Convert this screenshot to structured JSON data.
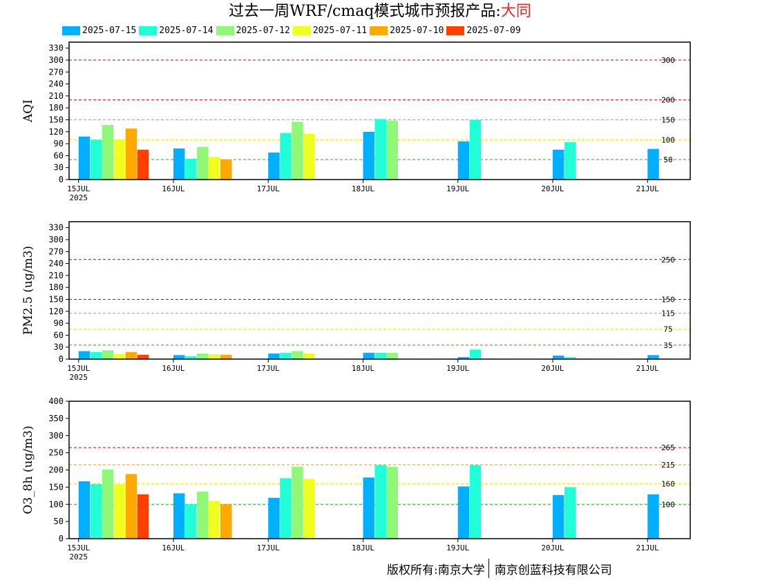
{
  "title": {
    "prefix": "过去一周WRF/cmaq模式城市预报产品:",
    "city": "大同"
  },
  "legend": [
    {
      "label": "2025-07-15",
      "color": "#00b0ff"
    },
    {
      "label": "2025-07-14",
      "color": "#20ffd8"
    },
    {
      "label": "2025-07-12",
      "color": "#90f878"
    },
    {
      "label": "2025-07-11",
      "color": "#f0ff20"
    },
    {
      "label": "2025-07-10",
      "color": "#ffa800"
    },
    {
      "label": "2025-07-09",
      "color": "#ff4000"
    }
  ],
  "footer": {
    "left": "版权所有:南京大学",
    "right": "南京创蓝科技有限公司"
  },
  "chart_data": [
    {
      "type": "bar",
      "ylabel": "AQI",
      "ylim": [
        0,
        345
      ],
      "yticks": [
        0,
        30,
        60,
        90,
        120,
        150,
        180,
        210,
        240,
        270,
        300,
        330
      ],
      "xlim": [
        -0.1,
        6.45
      ],
      "categories": [
        "15JUL",
        "16JUL",
        "17JUL",
        "18JUL",
        "19JUL",
        "20JUL",
        "21JUL"
      ],
      "year_label": "2025",
      "thresholds": [
        {
          "value": 50,
          "label": "50",
          "color": "#00c000"
        },
        {
          "value": 100,
          "label": "100",
          "color": "#e8e800"
        },
        {
          "value": 150,
          "label": "150",
          "color": "#ff9000"
        },
        {
          "value": 200,
          "label": "200",
          "color": "#e00000"
        },
        {
          "value": 300,
          "label": "300",
          "color": "#a00050"
        }
      ],
      "series": [
        {
          "name": "2025-07-15",
          "bars": [
            [
              0,
              108
            ],
            [
              1,
              78
            ],
            [
              2,
              68
            ],
            [
              3,
              120
            ],
            [
              4,
              96
            ],
            [
              5,
              75
            ],
            [
              6,
              77
            ]
          ]
        },
        {
          "name": "2025-07-14",
          "bars": [
            [
              0,
              100
            ],
            [
              1,
              52
            ],
            [
              2,
              117
            ],
            [
              3,
              152
            ],
            [
              4,
              150
            ],
            [
              5,
              94
            ]
          ]
        },
        {
          "name": "2025-07-12",
          "bars": [
            [
              0,
              137
            ],
            [
              1,
              82
            ],
            [
              2,
              145
            ],
            [
              3,
              148
            ]
          ]
        },
        {
          "name": "2025-07-11",
          "bars": [
            [
              0,
              100
            ],
            [
              1,
              57
            ],
            [
              2,
              115
            ]
          ]
        },
        {
          "name": "2025-07-10",
          "bars": [
            [
              0,
              128
            ],
            [
              1,
              51
            ]
          ]
        },
        {
          "name": "2025-07-09",
          "bars": [
            [
              0,
              75
            ]
          ]
        }
      ]
    },
    {
      "type": "bar",
      "ylabel": "PM2.5 (ug/m3)",
      "ylim": [
        0,
        345
      ],
      "yticks": [
        0,
        30,
        60,
        90,
        120,
        150,
        180,
        210,
        240,
        270,
        300,
        330
      ],
      "xlim": [
        -0.1,
        6.45
      ],
      "categories": [
        "15JUL",
        "16JUL",
        "17JUL",
        "18JUL",
        "19JUL",
        "20JUL",
        "21JUL"
      ],
      "year_label": "2025",
      "thresholds": [
        {
          "value": 35,
          "label": "35",
          "color": "#00c000"
        },
        {
          "value": 75,
          "label": "75",
          "color": "#e8e800"
        },
        {
          "value": 115,
          "label": "115",
          "color": "#ff9000"
        },
        {
          "value": 150,
          "label": "150",
          "color": "#e00000"
        },
        {
          "value": 250,
          "label": "250",
          "color": "#a00050"
        }
      ],
      "series": [
        {
          "name": "2025-07-15",
          "bars": [
            [
              0,
              20
            ],
            [
              1,
              10
            ],
            [
              2,
              14
            ],
            [
              3,
              16
            ],
            [
              4,
              5
            ],
            [
              5,
              9
            ],
            [
              6,
              10
            ]
          ]
        },
        {
          "name": "2025-07-14",
          "bars": [
            [
              0,
              18
            ],
            [
              1,
              7
            ],
            [
              2,
              16
            ],
            [
              3,
              16
            ],
            [
              4,
              24
            ],
            [
              5,
              5
            ]
          ]
        },
        {
          "name": "2025-07-12",
          "bars": [
            [
              0,
              22
            ],
            [
              1,
              14
            ],
            [
              2,
              20
            ],
            [
              3,
              16
            ]
          ]
        },
        {
          "name": "2025-07-11",
          "bars": [
            [
              0,
              13
            ],
            [
              1,
              12
            ],
            [
              2,
              14
            ]
          ]
        },
        {
          "name": "2025-07-10",
          "bars": [
            [
              0,
              18
            ],
            [
              1,
              11
            ]
          ]
        },
        {
          "name": "2025-07-09",
          "bars": [
            [
              0,
              11
            ]
          ]
        }
      ]
    },
    {
      "type": "bar",
      "ylabel": "O3_8h (ug/m3)",
      "ylim": [
        0,
        400
      ],
      "yticks": [
        0,
        50,
        100,
        150,
        200,
        250,
        300,
        350,
        400
      ],
      "xlim": [
        -0.1,
        6.45
      ],
      "categories": [
        "15JUL",
        "16JUL",
        "17JUL",
        "18JUL",
        "19JUL",
        "20JUL",
        "21JUL"
      ],
      "year_label": "2025",
      "thresholds": [
        {
          "value": 100,
          "label": "100",
          "color": "#00c000"
        },
        {
          "value": 160,
          "label": "160",
          "color": "#e8e800"
        },
        {
          "value": 215,
          "label": "215",
          "color": "#ff9000"
        },
        {
          "value": 265,
          "label": "265",
          "color": "#e00000"
        }
      ],
      "series": [
        {
          "name": "2025-07-15",
          "bars": [
            [
              0,
              167
            ],
            [
              1,
              132
            ],
            [
              2,
              119
            ],
            [
              3,
              178
            ],
            [
              4,
              152
            ],
            [
              5,
              127
            ],
            [
              6,
              129
            ]
          ]
        },
        {
          "name": "2025-07-14",
          "bars": [
            [
              0,
              159
            ],
            [
              1,
              100
            ],
            [
              2,
              176
            ],
            [
              3,
              214
            ],
            [
              4,
              214
            ],
            [
              5,
              150
            ]
          ]
        },
        {
          "name": "2025-07-12",
          "bars": [
            [
              0,
              201
            ],
            [
              1,
              137
            ],
            [
              2,
              209
            ],
            [
              3,
              209
            ]
          ]
        },
        {
          "name": "2025-07-11",
          "bars": [
            [
              0,
              158
            ],
            [
              1,
              110
            ],
            [
              2,
              174
            ]
          ]
        },
        {
          "name": "2025-07-10",
          "bars": [
            [
              0,
              188
            ],
            [
              1,
              100
            ]
          ]
        },
        {
          "name": "2025-07-09",
          "bars": [
            [
              0,
              129
            ]
          ]
        }
      ]
    }
  ]
}
